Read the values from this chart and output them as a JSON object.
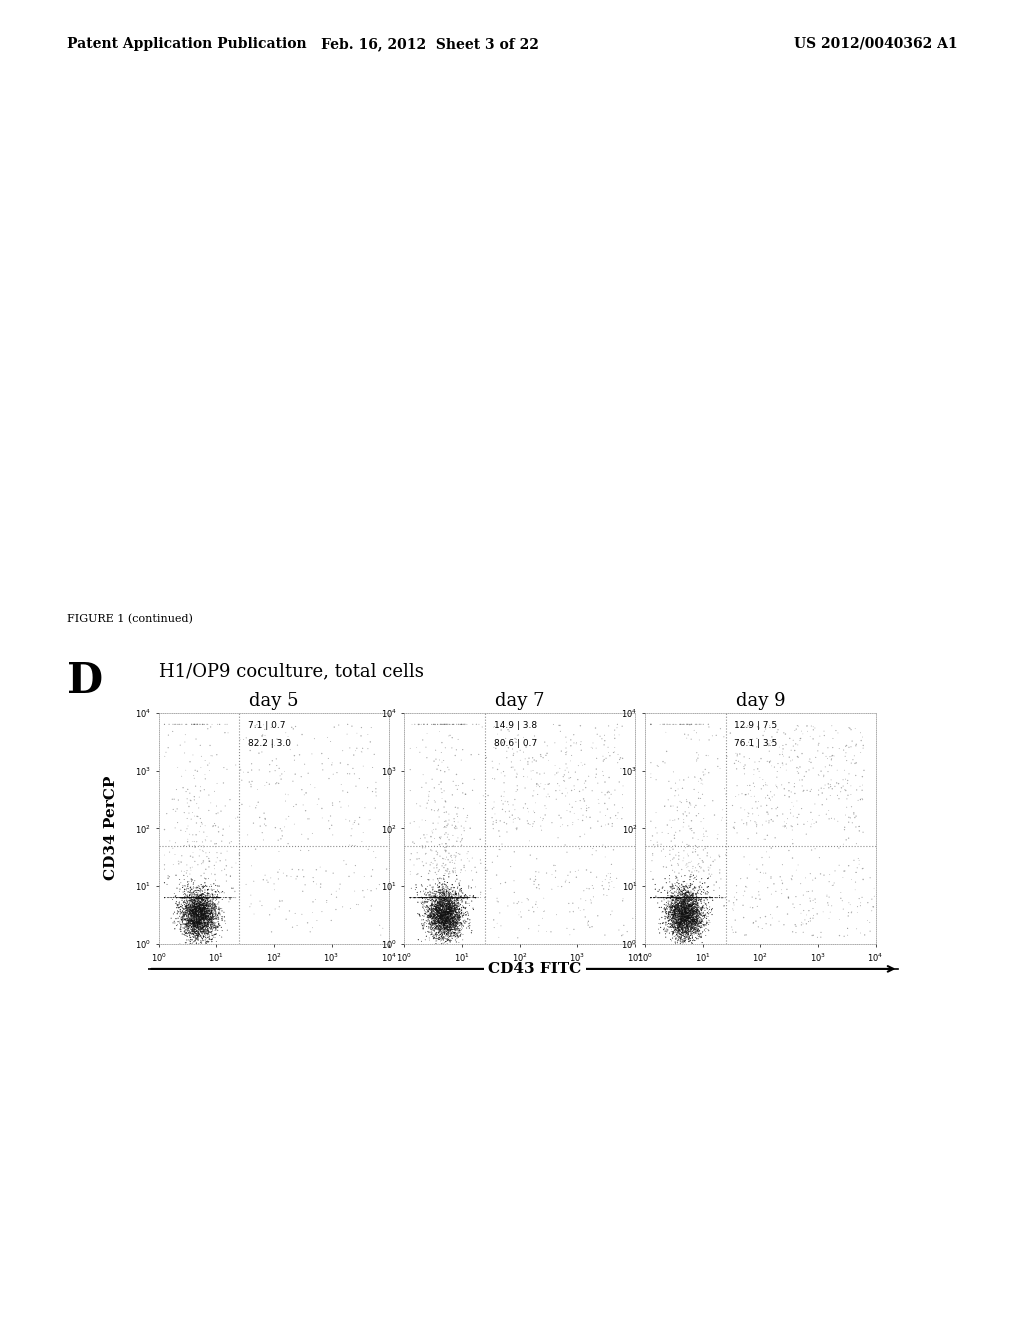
{
  "page_title_left": "Patent Application Publication",
  "page_title_center": "Feb. 16, 2012  Sheet 3 of 22",
  "page_title_right": "US 2012/0040362 A1",
  "figure_label": "FIGURE 1 (continued)",
  "panel_label": "D",
  "panel_title": "H1/OP9 coculture, total cells",
  "day_labels": [
    "day 5",
    "day 7",
    "day 9"
  ],
  "ylabel": "CD34 PerCP",
  "xlabel": "CD43 FITC",
  "quadrant_stats": [
    [
      "7.1",
      "0.7",
      "82.2",
      "3.0"
    ],
    [
      "14.9",
      "3.8",
      "80.6",
      "0.7"
    ],
    [
      "12.9",
      "7.5",
      "76.1",
      "3.5"
    ]
  ],
  "background_color": "#ffffff",
  "dot_color": "#444444",
  "dense_dot_color": "#111111",
  "header_fontsize": 10,
  "figure_label_fontsize": 8,
  "panel_label_fontsize": 30,
  "panel_title_fontsize": 13,
  "day_label_fontsize": 13,
  "axis_label_fontsize": 11,
  "tick_fontsize": 6,
  "stat_fontsize": 6.5
}
